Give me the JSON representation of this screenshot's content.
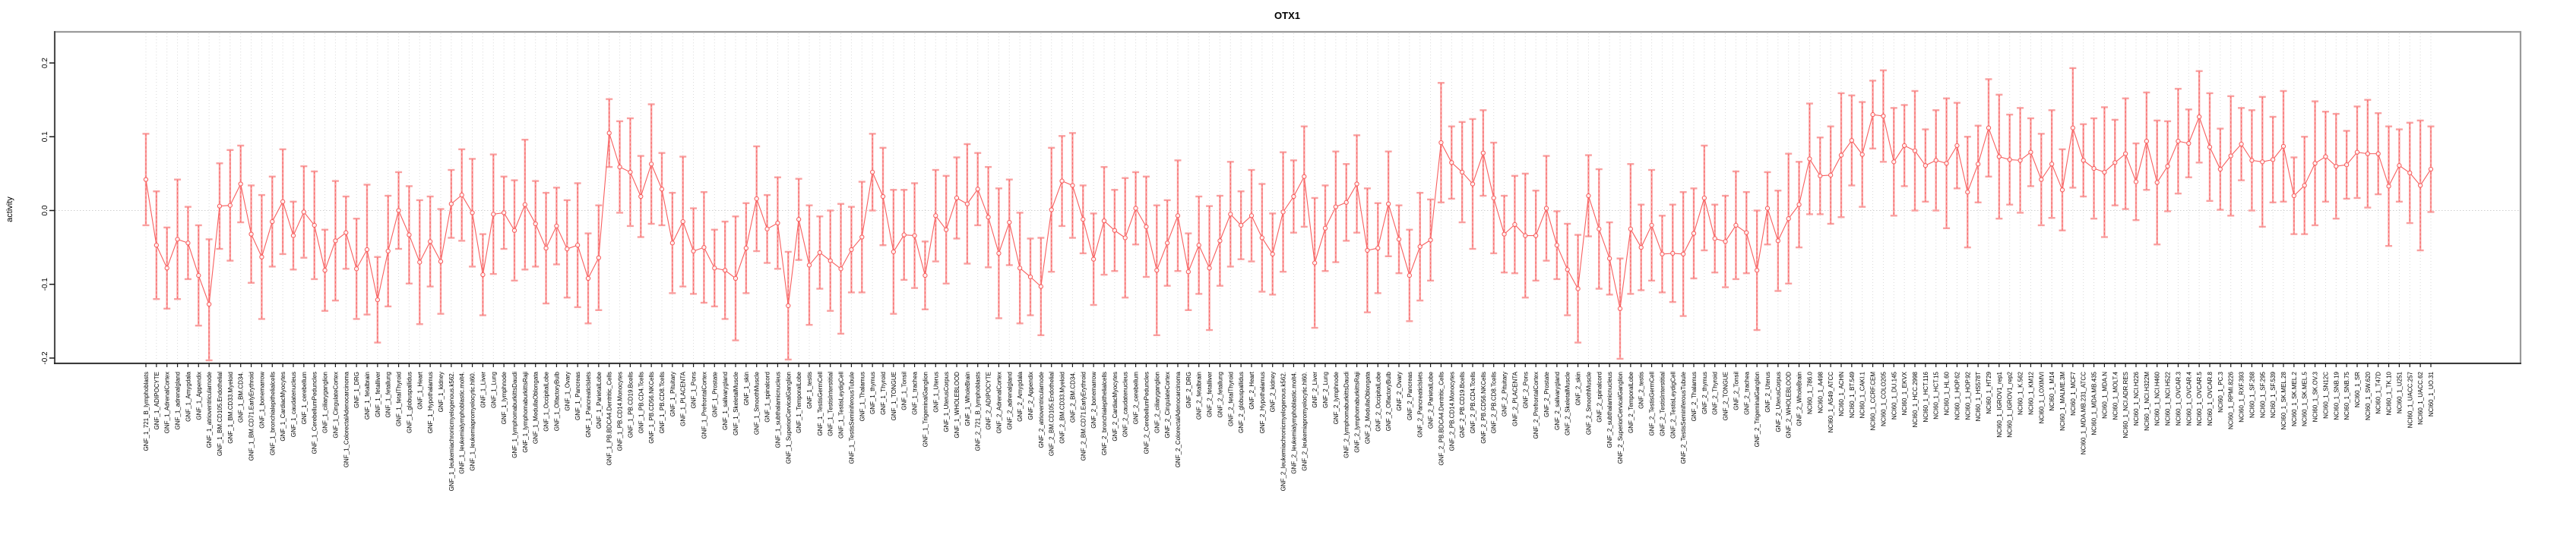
{
  "title": "OTX1",
  "ylabel": "activity",
  "colors": {
    "series": "#f85f5f",
    "ci": "#f9a0a0",
    "grid": "#d9d9d9",
    "zero_line": "#cfcfcf",
    "border_top_right": "#9a9a9a",
    "border_left": "#4d4d4d",
    "axis": "#1a1a1a"
  },
  "chart_data": {
    "type": "line",
    "title": "OTX1",
    "xlabel": "",
    "ylabel": "activity",
    "ylim": [
      -0.21,
      0.21
    ],
    "yticks": [
      0.2,
      0.1,
      0.0,
      -0.1,
      -0.2
    ],
    "ytick_labels": [
      "0.2",
      "0.1",
      "0.0",
      "-0.1",
      "-0.2"
    ],
    "grid": "vertical-dotted-per-category-plus-zero-line",
    "legend_position": "none",
    "error_bars": true,
    "categories": [
      "GNF_1_721_B_lymphoblasts",
      "GNF_1_ADIPOCYTE",
      "GNF_1_AdrenalCortex",
      "GNF_1_adrenalgland",
      "GNF_1_Amygdala",
      "GNF_1_Appendix",
      "GNF_1_atrioventricularnode",
      "GNF_1_BM.CD105.Endothelial",
      "GNF_1_BM.CD33.Myeloid",
      "GNF_1_BM.CD34.",
      "GNF_1_BM.CD71.EarlyErythroid",
      "GNF_1_bonemarrow",
      "GNF_1_bronchialepithelialcells",
      "GNF_1_CardiacMyocytes",
      "GNF_1_caudatenucleus",
      "GNF_1_cerebellum",
      "GNF_1_CerebellumPeduncles",
      "GNF_1_ciliaryganglion",
      "GNF_1_CingulateCortex",
      "GNF_1_ColorectalAdenocarcinoma",
      "GNF_1_DRG",
      "GNF_1_fetalbrain",
      "GNF_1_fetalliver",
      "GNF_1_fetallung",
      "GNF_1_fetalThyroid",
      "GNF_1_globuspallidus",
      "GNF_1_Heart",
      "GNF_1_Hypothalamus",
      "GNF_1_kidney",
      "GNF_1_leukemiachronicmyelogenous.k562.",
      "GNF_1_leukemialymphoblastic.molt4.",
      "GNF_1_leukemiapromyelocytic.hl60.",
      "GNF_1_Liver",
      "GNF_1_Lung",
      "GNF_1_lymphnode",
      "GNF_1_lymphomaburkittsDaudi",
      "GNF_1_lymphomaburkittsRaji",
      "GNF_1_MedullaOblongata",
      "GNF_1_OccipitalLobe",
      "GNF_1_OlfactoryBulb",
      "GNF_1_Ovary",
      "GNF_1_Pancreas",
      "GNF_1_PancreaticIslets",
      "GNF_1_ParietalLobe",
      "GNF_1_PB.BDCA4.Dentritic_Cells",
      "GNF_1_PB.CD14.Monocytes",
      "GNF_1_PB.CD19.Bcells",
      "GNF_1_PB.CD4.Tcells",
      "GNF_1_PB.CD56.NKCells",
      "GNF_1_PB.CD8.Tcells",
      "GNF_1_Pituitary",
      "GNF_1_PLACENTA",
      "GNF_1_Pons",
      "GNF_1_PrefrontalCortex",
      "GNF_1_Prostate",
      "GNF_1_salivarygland",
      "GNF_1_SkeletalMuscle",
      "GNF_1_skin",
      "GNF_1_SmoothMuscle",
      "GNF_1_spinalcord",
      "GNF_1_subthalamicnucleus",
      "GNF_1_SuperiorCervicalGanglion",
      "GNF_1_TemporalLobe",
      "GNF_1_testis",
      "GNF_1_TestisGermCell",
      "GNF_1_TestisInterstitial",
      "GNF_1_TestisLeydigCell",
      "GNF_1_TestisSeminiferousTubule",
      "GNF_1_Thalamus",
      "GNF_1_thymus",
      "GNF_1_Thyroid",
      "GNF_1_TONGUE",
      "GNF_1_Tonsil",
      "GNF_1_trachea",
      "GNF_1_TrigeminalGanglion",
      "GNF_1_Uterus",
      "GNF_1_UterusCorpus",
      "GNF_1_WHOLEBLOOD",
      "GNF_1_WholeBrain",
      "GNF_2_721_B_lymphoblasts",
      "GNF_2_ADIPOCYTE",
      "GNF_2_AdrenalCortex",
      "GNF_2_adrenalgland",
      "GNF_2_Amygdala",
      "GNF_2_Appendix",
      "GNF_2_atrioventricularnode",
      "GNF_2_BM.CD105.Endothelial",
      "GNF_2_BM.CD33.Myeloid",
      "GNF_2_BM.CD34.",
      "GNF_2_BM.CD71.EarlyErythroid",
      "GNF_2_bonemarrow",
      "GNF_2_bronchialepithelialcells",
      "GNF_2_CardiacMyocytes",
      "GNF_2_caudatenucleus",
      "GNF_2_cerebellum",
      "GNF_2_CerebellumPeduncles",
      "GNF_2_ciliaryganglion",
      "GNF_2_CingulateCortex",
      "GNF_2_ColorectalAdenocarcinoma",
      "GNF_2_DRG",
      "GNF_2_fetalbrain",
      "GNF_2_fetalliver",
      "GNF_2_fetallung",
      "GNF_2_fetalThyroid",
      "GNF_2_globuspallidus",
      "GNF_2_Heart",
      "GNF_2_Hypothalamus",
      "GNF_2_kidney",
      "GNF_2_leukemiachronicmyelogenous.k562.",
      "GNF_2_leukemialymphoblastic.molt4.",
      "GNF_2_leukemiapromyelocytic.hl60.",
      "GNF_2_Liver",
      "GNF_2_Lung",
      "GNF_2_lymphnode",
      "GNF_2_lymphomaburkittsDaudi",
      "GNF_2_lymphomaburkittsRaji",
      "GNF_2_MedullaOblongata",
      "GNF_2_OccipitalLobe",
      "GNF_2_OlfactoryBulb",
      "GNF_2_Ovary",
      "GNF_2_Pancreas",
      "GNF_2_PancreaticIslets",
      "GNF_2_ParietalLobe",
      "GNF_2_PB.BDCA4.Dentritic_Cells",
      "GNF_2_PB.CD14.Monocytes",
      "GNF_2_PB.CD19.Bcells",
      "GNF_2_PB.CD4.Tcells",
      "GNF_2_PB.CD56.NKCells",
      "GNF_2_PB.CD8.Tcells",
      "GNF_2_Pituitary",
      "GNF_2_PLACENTA",
      "GNF_2_Pons",
      "GNF_2_PrefrontalCortex",
      "GNF_2_Prostate",
      "GNF_2_salivarygland",
      "GNF_2_SkeletalMuscle",
      "GNF_2_skin",
      "GNF_2_SmoothMuscle",
      "GNF_2_spinalcord",
      "GNF_2_subthalamicnucleus",
      "GNF_2_SuperiorCervicalGanglion",
      "GNF_2_TemporalLobe",
      "GNF_2_testis",
      "GNF_2_TestisGermCell",
      "GNF_2_TestisInterstitial",
      "GNF_2_TestisLeydigCell",
      "GNF_2_TestisSeminiferousTubule",
      "GNF_2_Thalamus",
      "GNF_2_thymus",
      "GNF_2_Thyroid",
      "GNF_2_TONGUE",
      "GNF_2_Tonsil",
      "GNF_2_trachea",
      "GNF_2_TrigeminalGanglion",
      "GNF_2_Uterus",
      "GNF_2_UterusCorpus",
      "GNF_2_WHOLEBLOOD",
      "GNF_2_WholeBrain",
      "NCI60_1_786.0",
      "NCI60_1_A498",
      "NCI60_1_A549_ATCC",
      "NCI60_1_ACHN",
      "NCI60_1_BT.549",
      "NCI60_1_CAKI.1",
      "NCI60_1_CCRF.CEM",
      "NCI60_1_COLO205",
      "NCI60_1_DU.145",
      "NCI60_1_EKVX",
      "NCI60_1_HCC.2998",
      "NCI60_1_HCT.116",
      "NCI60_1_HCT.15",
      "NCI60_1_HL.60",
      "NCI60_1_HOP.62",
      "NCI60_1_HOP.92",
      "NCI60_1_HS578T",
      "NCI60_1_HT29",
      "NCI60_1_IGROV1_rep1",
      "NCI60_1_IGROV1_rep2",
      "NCI60_1_K.562",
      "NCI60_1_KM12",
      "NCI60_1_LOXIMVI",
      "NCI60_1_M14",
      "NCI60_1_MALME.3M",
      "NCI60_1_MCF7",
      "NCI60_1_MDA.MB.231_ATCC",
      "NCI60_1_MDA.MB.435",
      "NCI60_1_MDA.N",
      "NCI60_1_MOLT.4",
      "NCI60_1_NCI.ADR.RES",
      "NCI60_1_NCI.H226",
      "NCI60_1_NCI.H322M",
      "NCI60_1_NCI.H460",
      "NCI60_1_NCI.H522",
      "NCI60_1_OVCAR.3",
      "NCI60_1_OVCAR.4",
      "NCI60_1_OVCAR.5",
      "NCI60_1_OVCAR.8",
      "NCI60_1_PC.3",
      "NCI60_1_RPMI.8226",
      "NCI60_1_RXF.393",
      "NCI60_1_SF.268",
      "NCI60_1_SF.295",
      "NCI60_1_SF.539",
      "NCI60_1_SK.MEL.28",
      "NCI60_1_SK.MEL.2",
      "NCI60_1_SK.MEL.5",
      "NCI60_1_SK.OV.3",
      "NCI60_1_SN12C",
      "NCI60_1_SNB.19",
      "NCI60_1_SNB.75",
      "NCI60_1_SR",
      "NCI60_1_SW.620",
      "NCI60_1_T47D",
      "NCI60_1_TK.10",
      "NCI60_1_U251",
      "NCI60_1_UACC.257",
      "NCI60_1_UACC.62",
      "NCI60_1_UO.31"
    ],
    "values": [
      0.042,
      -0.047,
      -0.078,
      -0.039,
      -0.044,
      -0.088,
      -0.127,
      0.006,
      0.007,
      0.036,
      -0.032,
      -0.063,
      -0.015,
      0.012,
      -0.034,
      -0.002,
      -0.02,
      -0.081,
      -0.041,
      -0.03,
      -0.079,
      -0.053,
      -0.121,
      -0.055,
      0.0,
      -0.033,
      -0.07,
      -0.042,
      -0.069,
      0.009,
      0.021,
      -0.003,
      -0.087,
      -0.005,
      -0.003,
      -0.027,
      0.008,
      -0.018,
      -0.051,
      -0.021,
      -0.052,
      -0.047,
      -0.092,
      -0.064,
      0.105,
      0.059,
      0.052,
      0.019,
      0.063,
      0.029,
      -0.044,
      -0.015,
      -0.055,
      -0.05,
      -0.078,
      -0.081,
      -0.092,
      -0.051,
      0.016,
      -0.025,
      -0.017,
      -0.129,
      -0.012,
      -0.074,
      -0.057,
      -0.068,
      -0.079,
      -0.053,
      -0.036,
      0.052,
      0.019,
      -0.056,
      -0.033,
      -0.034,
      -0.088,
      -0.007,
      -0.026,
      0.017,
      0.009,
      0.029,
      -0.009,
      -0.058,
      -0.016,
      -0.078,
      -0.09,
      -0.103,
      0.001,
      0.04,
      0.034,
      -0.012,
      -0.066,
      -0.014,
      -0.027,
      -0.037,
      0.003,
      -0.022,
      -0.081,
      -0.044,
      -0.007,
      -0.083,
      -0.047,
      -0.078,
      -0.041,
      -0.005,
      -0.02,
      -0.007,
      -0.037,
      -0.059,
      -0.002,
      0.019,
      0.046,
      -0.071,
      -0.024,
      0.005,
      0.011,
      0.036,
      -0.054,
      -0.051,
      0.009,
      -0.039,
      -0.088,
      -0.049,
      -0.04,
      0.092,
      0.065,
      0.052,
      0.036,
      0.078,
      0.017,
      -0.032,
      -0.019,
      -0.034,
      -0.034,
      0.003,
      -0.047,
      -0.08,
      -0.106,
      0.02,
      -0.025,
      -0.065,
      -0.133,
      -0.025,
      -0.05,
      -0.02,
      -0.059,
      -0.058,
      -0.059,
      -0.031,
      0.017,
      -0.038,
      -0.042,
      -0.02,
      -0.03,
      -0.081,
      0.003,
      -0.041,
      -0.011,
      0.008,
      0.07,
      0.047,
      0.048,
      0.075,
      0.095,
      0.076,
      0.13,
      0.128,
      0.066,
      0.088,
      0.081,
      0.061,
      0.068,
      0.064,
      0.088,
      0.025,
      0.063,
      0.112,
      0.073,
      0.069,
      0.068,
      0.079,
      0.042,
      0.063,
      0.028,
      0.112,
      0.068,
      0.057,
      0.052,
      0.065,
      0.077,
      0.039,
      0.094,
      0.038,
      0.06,
      0.094,
      0.091,
      0.127,
      0.086,
      0.056,
      0.074,
      0.09,
      0.068,
      0.066,
      0.069,
      0.087,
      0.02,
      0.034,
      0.064,
      0.073,
      0.06,
      0.062,
      0.079,
      0.077,
      0.077,
      0.033,
      0.061,
      0.051,
      0.034,
      0.056
    ],
    "ci": [
      0.062,
      0.073,
      0.055,
      0.081,
      0.049,
      0.068,
      0.088,
      0.058,
      0.075,
      0.052,
      0.066,
      0.084,
      0.061,
      0.071,
      0.046,
      0.062,
      0.073,
      0.055,
      0.081,
      0.049,
      0.068,
      0.088,
      0.058,
      0.075,
      0.052,
      0.066,
      0.084,
      0.061,
      0.071,
      0.046,
      0.062,
      0.073,
      0.055,
      0.081,
      0.049,
      0.068,
      0.088,
      0.058,
      0.075,
      0.052,
      0.066,
      0.084,
      0.061,
      0.071,
      0.046,
      0.062,
      0.073,
      0.055,
      0.081,
      0.049,
      0.068,
      0.088,
      0.058,
      0.075,
      0.052,
      0.066,
      0.084,
      0.061,
      0.071,
      0.046,
      0.062,
      0.073,
      0.055,
      0.081,
      0.049,
      0.068,
      0.088,
      0.058,
      0.075,
      0.052,
      0.066,
      0.084,
      0.061,
      0.071,
      0.046,
      0.062,
      0.073,
      0.055,
      0.081,
      0.049,
      0.068,
      0.088,
      0.058,
      0.075,
      0.052,
      0.066,
      0.084,
      0.061,
      0.071,
      0.046,
      0.062,
      0.073,
      0.055,
      0.081,
      0.049,
      0.068,
      0.088,
      0.058,
      0.075,
      0.052,
      0.066,
      0.084,
      0.061,
      0.071,
      0.046,
      0.062,
      0.073,
      0.055,
      0.081,
      0.049,
      0.068,
      0.088,
      0.058,
      0.075,
      0.052,
      0.066,
      0.084,
      0.061,
      0.071,
      0.046,
      0.062,
      0.073,
      0.055,
      0.081,
      0.049,
      0.068,
      0.088,
      0.058,
      0.075,
      0.052,
      0.066,
      0.084,
      0.061,
      0.071,
      0.046,
      0.062,
      0.073,
      0.055,
      0.081,
      0.049,
      0.068,
      0.088,
      0.058,
      0.075,
      0.052,
      0.066,
      0.084,
      0.061,
      0.071,
      0.046,
      0.062,
      0.073,
      0.055,
      0.081,
      0.049,
      0.068,
      0.088,
      0.058,
      0.075,
      0.052,
      0.066,
      0.084,
      0.061,
      0.071,
      0.046,
      0.062,
      0.073,
      0.055,
      0.081,
      0.049,
      0.068,
      0.088,
      0.058,
      0.075,
      0.052,
      0.066,
      0.084,
      0.061,
      0.071,
      0.046,
      0.062,
      0.073,
      0.055,
      0.081,
      0.049,
      0.068,
      0.088,
      0.058,
      0.075,
      0.052,
      0.066,
      0.084,
      0.061,
      0.071,
      0.046,
      0.062,
      0.073,
      0.055,
      0.081,
      0.049,
      0.068,
      0.088,
      0.058,
      0.075,
      0.052,
      0.066,
      0.084,
      0.061,
      0.071,
      0.046,
      0.062,
      0.073,
      0.055,
      0.081,
      0.049,
      0.068,
      0.088,
      0.058
    ]
  }
}
